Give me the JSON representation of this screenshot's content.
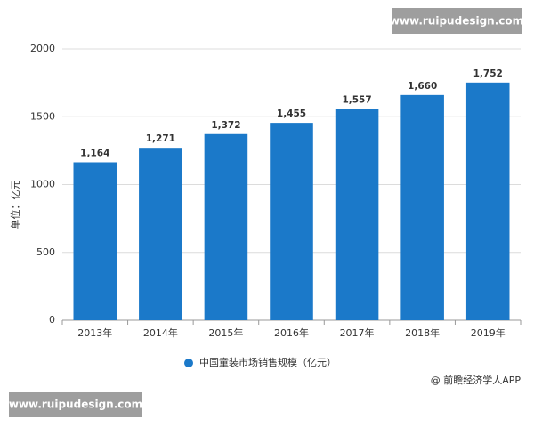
{
  "chart_data": {
    "type": "bar",
    "y_label": "单位：亿元",
    "categories": [
      "2013年",
      "2014年",
      "2015年",
      "2016年",
      "2017年",
      "2018年",
      "2019年"
    ],
    "series": [
      {
        "name": "中国童装市场销售规模（亿元）",
        "color": "#1b79c9",
        "values": [
          1164,
          1271,
          1372,
          1455,
          1557,
          1660,
          1752
        ],
        "value_labels": [
          "1,164",
          "1,271",
          "1,372",
          "1,455",
          "1,557",
          "1,660",
          "1,752"
        ]
      }
    ],
    "ylim": [
      0,
      2000
    ],
    "yticks": [
      0,
      500,
      1000,
      1500,
      2000
    ],
    "grid": true,
    "legend": "bottom",
    "watermarks": [
      "www.ruipudesign.com",
      "www.ruipudesign.com"
    ],
    "source": "@ 前瞻经济学人APP"
  }
}
